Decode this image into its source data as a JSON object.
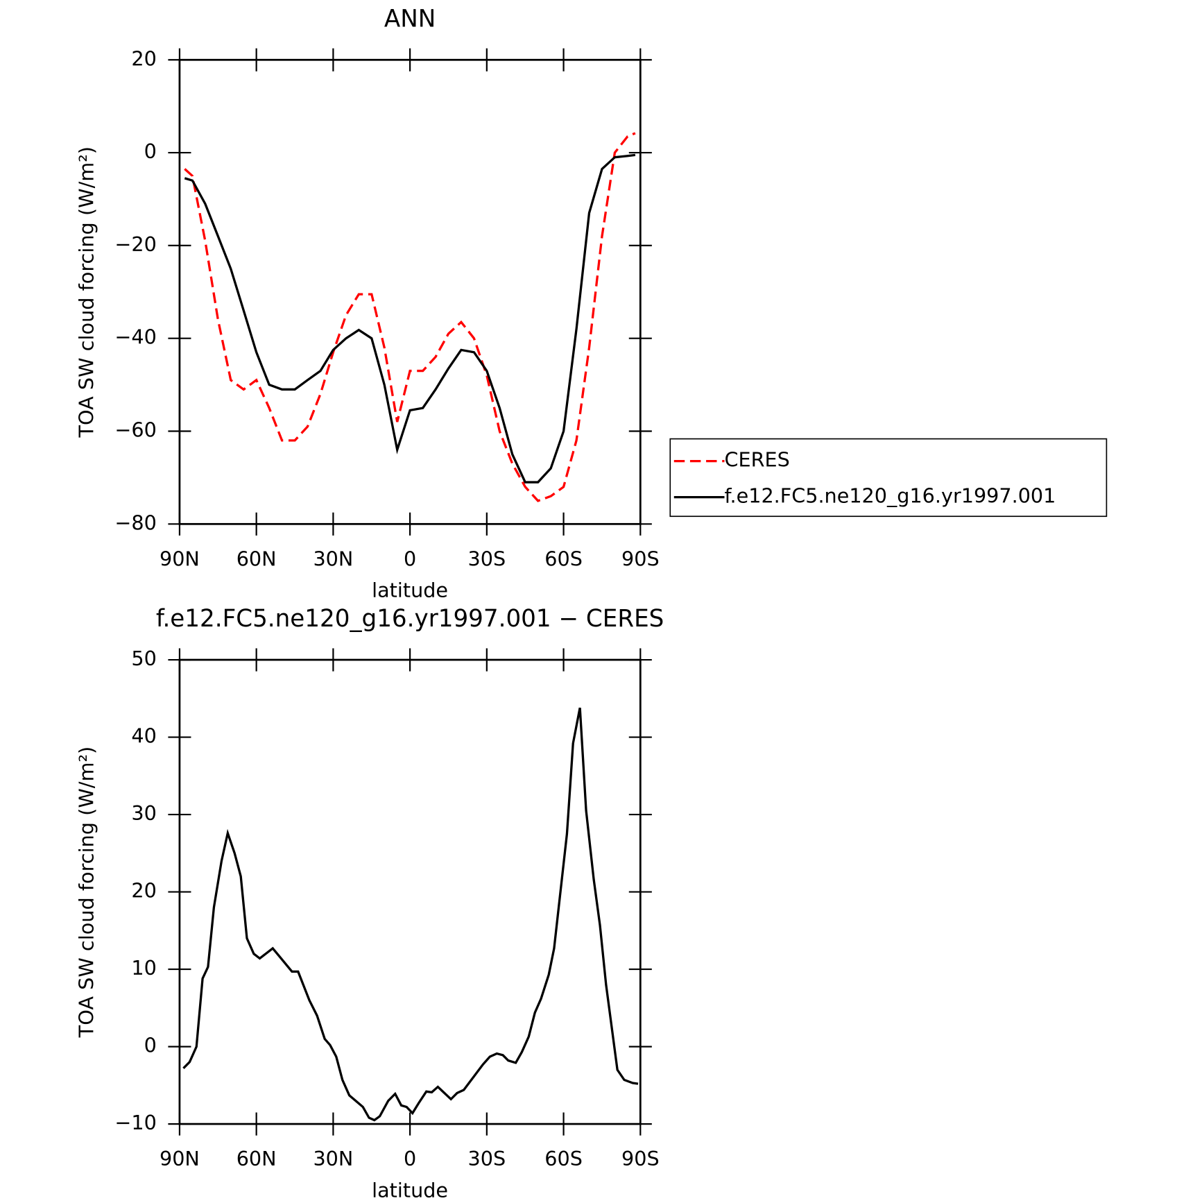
{
  "chart_data": [
    {
      "type": "line",
      "title": "ANN",
      "xlabel": "latitude",
      "ylabel": "TOA SW cloud forcing (W/m²)",
      "xlim": [
        90,
        -90
      ],
      "xticks": [
        {
          "value": 90,
          "label": "90N"
        },
        {
          "value": 60,
          "label": "60N"
        },
        {
          "value": 30,
          "label": "30N"
        },
        0,
        {
          "value": -30,
          "label": "30S"
        },
        {
          "value": -60,
          "label": "60S"
        },
        {
          "value": -90,
          "label": "90S"
        }
      ],
      "ylim": [
        -80,
        20
      ],
      "yticks": [
        {
          "value": -80,
          "label": "−80"
        },
        {
          "value": -60,
          "label": "−60"
        },
        {
          "value": -40,
          "label": "−40"
        },
        {
          "value": -20,
          "label": "−20"
        },
        0,
        20
      ],
      "legend": "outside-right",
      "x": [
        88,
        85,
        80,
        75,
        70,
        65,
        60,
        55,
        50,
        45,
        40,
        35,
        30,
        25,
        20,
        15,
        10,
        5,
        0,
        -5,
        -10,
        -15,
        -20,
        -25,
        -30,
        -35,
        -40,
        -45,
        -50,
        -55,
        -60,
        -65,
        -70,
        -75,
        -80,
        -85,
        -88
      ],
      "series": [
        {
          "name": "CERES",
          "color": "#ff0000",
          "dash": true,
          "values": [
            -3.5,
            -5,
            -19,
            -36,
            -49,
            -51,
            -49,
            -55,
            -62,
            -62,
            -59,
            -52,
            -43,
            -35,
            -30.5,
            -30.5,
            -42,
            -58,
            -47,
            -47,
            -44,
            -39,
            -36.5,
            -40,
            -48,
            -60,
            -67,
            -72,
            -75,
            -74,
            -72,
            -62,
            -42,
            -18,
            0,
            3.5,
            4.2
          ]
        },
        {
          "name": "f.e12.FC5.ne120_g16.yr1997.001",
          "color": "#000000",
          "dash": false,
          "values": [
            -5.5,
            -6,
            -11,
            -18,
            -25,
            -34,
            -43,
            -50,
            -51,
            -51,
            -49,
            -47,
            -42.5,
            -40,
            -38.2,
            -40,
            -50,
            -64,
            -55.5,
            -55,
            -51,
            -46.5,
            -42.5,
            -43,
            -47,
            -55,
            -65,
            -71,
            -71,
            -68,
            -60,
            -38,
            -13,
            -3.5,
            -1,
            -0.7,
            -0.5
          ]
        }
      ]
    },
    {
      "type": "line",
      "title": "f.e12.FC5.ne120_g16.yr1997.001 − CERES",
      "xlabel": "latitude",
      "ylabel": "TOA SW cloud forcing (W/m²)",
      "xlim": [
        90,
        -90
      ],
      "xticks": [
        {
          "value": 90,
          "label": "90N"
        },
        {
          "value": 60,
          "label": "60N"
        },
        {
          "value": 30,
          "label": "30N"
        },
        0,
        {
          "value": -30,
          "label": "30S"
        },
        {
          "value": -60,
          "label": "60S"
        },
        {
          "value": -90,
          "label": "90S"
        }
      ],
      "ylim": [
        -10,
        50
      ],
      "yticks": [
        {
          "value": -10,
          "label": "−10"
        },
        0,
        10,
        20,
        30,
        40,
        50
      ],
      "series": [
        {
          "color": "#000000",
          "x": [
            88.5,
            86.1,
            83.4,
            81.0,
            78.9,
            76.6,
            73.6,
            71.2,
            68.5,
            66.1,
            63.7,
            61.0,
            58.7,
            53.6,
            50.6,
            46.1,
            43.7,
            39.3,
            36.3,
            33.3,
            31.2,
            28.8,
            26.4,
            23.7,
            18.4,
            16.0,
            13.9,
            11.8,
            8.5,
            5.8,
            3.4,
            1.3,
            -1.0,
            -3.4,
            -6.4,
            -8.5,
            -10.9,
            -16.0,
            -18.4,
            -21.0,
            -28.5,
            -31.2,
            -33.9,
            -36.3,
            -38.4,
            -41.3,
            -43.7,
            -46.4,
            -48.8,
            -51.2,
            -54.2,
            -56.3,
            -61.3,
            -63.7,
            -66.4,
            -68.8,
            -71.8,
            -74.2,
            -76.6,
            -81.0,
            -83.7,
            -87.0,
            -89.1
          ],
          "values": [
            -2.8,
            -2,
            0,
            8.8,
            10.3,
            18,
            24,
            27.6,
            25,
            22,
            14,
            12,
            11.4,
            12.7,
            11.5,
            9.7,
            9.7,
            6,
            4,
            1,
            0.2,
            -1.3,
            -4.3,
            -6.3,
            -7.8,
            -9.2,
            -9.5,
            -9,
            -7,
            -6.1,
            -7.6,
            -7.8,
            -8.6,
            -7.3,
            -5.8,
            -5.9,
            -5.2,
            -6.8,
            -6,
            -5.6,
            -2.3,
            -1.3,
            -0.9,
            -1.1,
            -1.8,
            -2.1,
            -0.7,
            1.3,
            4.4,
            6.2,
            9.3,
            12.7,
            27.5,
            39.2,
            43.8,
            30.5,
            21.6,
            15.7,
            8,
            -3,
            -4.3,
            -4.7,
            -4.8
          ]
        }
      ]
    }
  ]
}
